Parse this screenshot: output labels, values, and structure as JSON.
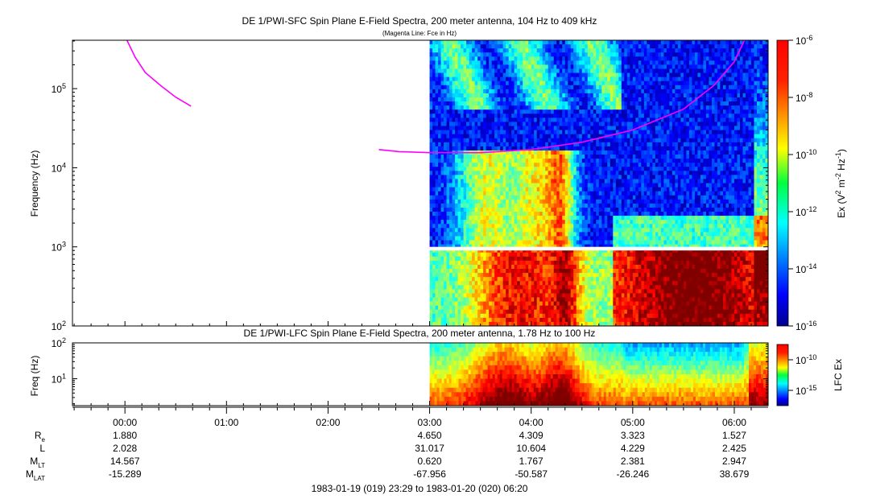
{
  "chart_data": [
    {
      "type": "heatmap",
      "title": "DE 1/PWI-SFC  Spin Plane E-Field Spectra, 200 meter antenna, 104 Hz to 409 kHz",
      "subtitle": "(Magenta Line: Fce in Hz)",
      "ylabel": "Frequency (Hz)",
      "yscale": "log",
      "ylim": [
        100,
        409000
      ],
      "y_ticks": [
        {
          "value": 100,
          "label": "10",
          "exp": "2"
        },
        {
          "value": 1000,
          "label": "10",
          "exp": "3"
        },
        {
          "value": 10000,
          "label": "10",
          "exp": "4"
        },
        {
          "value": 100000,
          "label": "10",
          "exp": "5"
        }
      ],
      "colorbar": {
        "label_parts": [
          "Ex (V",
          "2",
          " m",
          "-2",
          " Hz",
          "-1",
          ")"
        ],
        "scale": "log",
        "range": [
          1e-16,
          1e-06
        ],
        "ticks": [
          {
            "value": -6,
            "label": "10",
            "exp": "-6"
          },
          {
            "value": -8,
            "label": "10",
            "exp": "-8"
          },
          {
            "value": -10,
            "label": "10",
            "exp": "-10"
          },
          {
            "value": -12,
            "label": "10",
            "exp": "-12"
          },
          {
            "value": -14,
            "label": "10",
            "exp": "-14"
          },
          {
            "value": -16,
            "label": "10",
            "exp": "-16"
          }
        ]
      },
      "data_coverage_start_hours": 3.0,
      "gap_band_hz": [
        900,
        1000
      ],
      "fce_line": [
        {
          "t": 0.02,
          "f": 409000
        },
        {
          "t": 0.1,
          "f": 250000
        },
        {
          "t": 0.2,
          "f": 160000
        },
        {
          "t": 0.35,
          "f": 110000
        },
        {
          "t": 0.5,
          "f": 78000
        },
        {
          "t": 0.65,
          "f": 60000
        },
        {
          "t": 2.5,
          "f": 17000
        },
        {
          "t": 2.7,
          "f": 16000
        },
        {
          "t": 3.0,
          "f": 15500
        },
        {
          "t": 3.5,
          "f": 15500
        },
        {
          "t": 4.0,
          "f": 17000
        },
        {
          "t": 4.5,
          "f": 21000
        },
        {
          "t": 5.0,
          "f": 30000
        },
        {
          "t": 5.5,
          "f": 55000
        },
        {
          "t": 5.8,
          "f": 110000
        },
        {
          "t": 6.0,
          "f": 220000
        },
        {
          "t": 6.1,
          "f": 409000
        }
      ]
    },
    {
      "type": "heatmap",
      "title": "DE 1/PWI-LFC  Spin Plane E-Field Spectra, 200 meter antenna, 1.78 Hz to 100 Hz",
      "ylabel": "Freq (Hz)",
      "yscale": "log",
      "ylim": [
        1.78,
        100
      ],
      "y_ticks": [
        {
          "value": 10,
          "label": "10",
          "exp": "1"
        },
        {
          "value": 100,
          "label": "10",
          "exp": "2"
        }
      ],
      "colorbar": {
        "label": "LFC Ex",
        "scale": "log",
        "ticks": [
          {
            "value": -10,
            "label": "10",
            "exp": "-10"
          },
          {
            "value": -15,
            "label": "10",
            "exp": "-15"
          }
        ]
      },
      "data_coverage_start_hours": 3.0
    }
  ],
  "time_axis": {
    "range_hours": [
      -0.5167,
      6.3333
    ],
    "ticks": [
      {
        "value": 0,
        "label": "00:00"
      },
      {
        "value": 1,
        "label": "01:00"
      },
      {
        "value": 2,
        "label": "02:00"
      },
      {
        "value": 3,
        "label": "03:00"
      },
      {
        "value": 4,
        "label": "04:00"
      },
      {
        "value": 5,
        "label": "05:00"
      },
      {
        "value": 6,
        "label": "06:00"
      }
    ],
    "ephemeris": [
      {
        "name": "R",
        "sub": "e",
        "values": {
          "0": "1.880",
          "3": "4.650",
          "4": "4.309",
          "5": "3.323",
          "6": "1.527"
        }
      },
      {
        "name": "L",
        "sub": "",
        "values": {
          "0": "2.028",
          "3": "31.017",
          "4": "10.604",
          "5": "4.229",
          "6": "2.425"
        }
      },
      {
        "name": "M",
        "sub": "LT",
        "values": {
          "0": "14.567",
          "3": "0.620",
          "4": "1.767",
          "5": "2.381",
          "6": "2.947"
        }
      },
      {
        "name": "M",
        "sub": "LAT",
        "values": {
          "0": "-15.289",
          "3": "-67.956",
          "4": "-50.587",
          "5": "-26.246",
          "6": "38.679"
        }
      }
    ],
    "range_label": "1983-01-19 (019) 23:29 to 1983-01-20 (020) 06:20"
  }
}
